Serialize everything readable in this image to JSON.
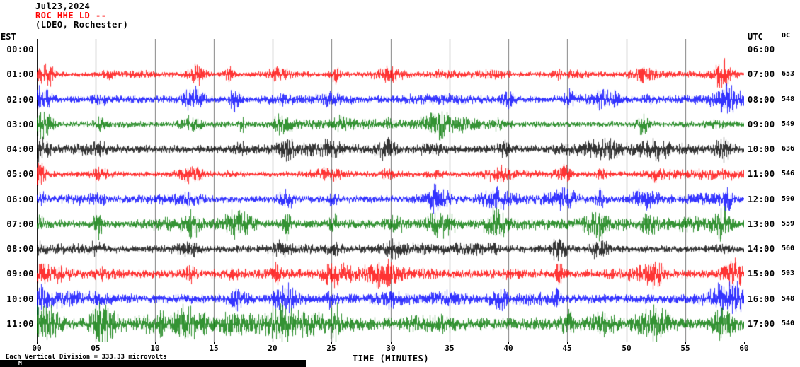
{
  "header": {
    "date": "Jul23,2024",
    "station": "ROC HHE LD --",
    "location": "(LDEO, Rochester)"
  },
  "axes": {
    "left_title": "EST",
    "right_title": "UTC",
    "dc_title": "DC",
    "x_title": "TIME (MINUTES)",
    "x_ticks": [
      "00",
      "05",
      "10",
      "15",
      "20",
      "25",
      "30",
      "35",
      "40",
      "45",
      "50",
      "55",
      "60"
    ],
    "x_range_minutes": [
      0,
      60
    ]
  },
  "footer": {
    "scale_note": "Each Vertical Division = 333.33 microvolts",
    "mark": "M"
  },
  "colors": {
    "red": "#ff0000",
    "blue": "#0000ff",
    "green": "#007700",
    "black": "#000000",
    "grid": "#7a7a7a"
  },
  "hour_labels": [
    {
      "est": "00:00",
      "utc": "06:00"
    },
    {
      "est": "01:00",
      "utc": "07:00"
    },
    {
      "est": "02:00",
      "utc": "08:00"
    },
    {
      "est": "03:00",
      "utc": "09:00"
    },
    {
      "est": "04:00",
      "utc": "10:00"
    },
    {
      "est": "05:00",
      "utc": "11:00"
    },
    {
      "est": "06:00",
      "utc": "12:00"
    },
    {
      "est": "07:00",
      "utc": "13:00"
    },
    {
      "est": "08:00",
      "utc": "14:00"
    },
    {
      "est": "09:00",
      "utc": "15:00"
    },
    {
      "est": "10:00",
      "utc": "16:00"
    },
    {
      "est": "11:00",
      "utc": "17:00"
    }
  ],
  "chart_data": {
    "type": "line",
    "subtype": "helicorder-seismogram",
    "title": "ROC HHE LD -- (LDEO, Rochester) Jul23,2024",
    "xlabel": "TIME (MINUTES)",
    "x_range": [
      0,
      60
    ],
    "grid": "vertical lines every 5 minutes",
    "vertical_division_microvolts": 333.33,
    "rows": [
      {
        "est": "01:00",
        "utc": "07:00",
        "dc": 653,
        "color": "red",
        "amp": 4.5,
        "burst": 3.5,
        "clip": 30,
        "start": 2.0,
        "seed": 101
      },
      {
        "est": "02:00",
        "utc": "08:00",
        "dc": 548,
        "color": "blue",
        "amp": 5.5,
        "burst": 3.0,
        "clip": 28,
        "start": 3.0,
        "seed": 202
      },
      {
        "est": "03:00",
        "utc": "09:00",
        "dc": 549,
        "color": "green",
        "amp": 5.0,
        "burst": 2.6,
        "clip": 26,
        "start": 3.0,
        "seed": 303
      },
      {
        "est": "04:00",
        "utc": "10:00",
        "dc": 636,
        "color": "black",
        "amp": 6.5,
        "burst": 1.8,
        "clip": 20,
        "start": 2.0,
        "seed": 404
      },
      {
        "est": "05:00",
        "utc": "11:00",
        "dc": 546,
        "color": "red",
        "amp": 4.5,
        "burst": 2.2,
        "clip": 22,
        "start": 4.0,
        "seed": 505
      },
      {
        "est": "06:00",
        "utc": "12:00",
        "dc": 590,
        "color": "blue",
        "amp": 6.0,
        "burst": 2.6,
        "clip": 26,
        "start": 1.5,
        "seed": 606
      },
      {
        "est": "07:00",
        "utc": "13:00",
        "dc": 559,
        "color": "green",
        "amp": 7.0,
        "burst": 2.8,
        "clip": 30,
        "start": 1.5,
        "seed": 707
      },
      {
        "est": "08:00",
        "utc": "14:00",
        "dc": 560,
        "color": "black",
        "amp": 6.0,
        "burst": 2.2,
        "clip": 22,
        "start": 1.0,
        "seed": 808
      },
      {
        "est": "09:00",
        "utc": "15:00",
        "dc": 593,
        "color": "red",
        "amp": 7.0,
        "burst": 2.2,
        "clip": 24,
        "start": 1.0,
        "seed": 909
      },
      {
        "est": "10:00",
        "utc": "16:00",
        "dc": 548,
        "color": "blue",
        "amp": 8.0,
        "burst": 2.6,
        "clip": 28,
        "start": 1.0,
        "seed": 1010
      },
      {
        "est": "11:00",
        "utc": "17:00",
        "dc": 540,
        "color": "green",
        "amp": 10.0,
        "burst": 2.8,
        "clip": 34,
        "start": 1.0,
        "seed": 1111
      }
    ]
  }
}
